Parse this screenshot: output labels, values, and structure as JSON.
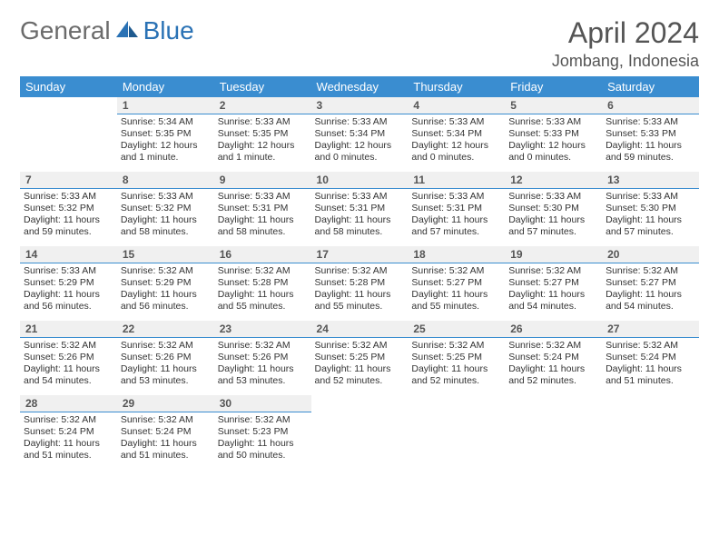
{
  "logo": {
    "part1": "General",
    "part2": "Blue"
  },
  "title": "April 2024",
  "location": "Jombang, Indonesia",
  "colors": {
    "header_bg": "#3a8dd0",
    "header_text": "#ffffff",
    "daynum_bg": "#f0f0f0",
    "day_border": "#3a8dd0",
    "logo_gray": "#6b6b6b",
    "logo_blue": "#2a72b5",
    "body_bg": "#ffffff",
    "text": "#333333"
  },
  "fonts": {
    "title_size": 32,
    "location_size": 18,
    "header_size": 13,
    "daynum_size": 12,
    "body_size": 10.5
  },
  "weekdays": [
    "Sunday",
    "Monday",
    "Tuesday",
    "Wednesday",
    "Thursday",
    "Friday",
    "Saturday"
  ],
  "first_weekday_index": 1,
  "days": [
    {
      "n": 1,
      "sunrise": "5:34 AM",
      "sunset": "5:35 PM",
      "daylight": "12 hours and 1 minute."
    },
    {
      "n": 2,
      "sunrise": "5:33 AM",
      "sunset": "5:35 PM",
      "daylight": "12 hours and 1 minute."
    },
    {
      "n": 3,
      "sunrise": "5:33 AM",
      "sunset": "5:34 PM",
      "daylight": "12 hours and 0 minutes."
    },
    {
      "n": 4,
      "sunrise": "5:33 AM",
      "sunset": "5:34 PM",
      "daylight": "12 hours and 0 minutes."
    },
    {
      "n": 5,
      "sunrise": "5:33 AM",
      "sunset": "5:33 PM",
      "daylight": "12 hours and 0 minutes."
    },
    {
      "n": 6,
      "sunrise": "5:33 AM",
      "sunset": "5:33 PM",
      "daylight": "11 hours and 59 minutes."
    },
    {
      "n": 7,
      "sunrise": "5:33 AM",
      "sunset": "5:32 PM",
      "daylight": "11 hours and 59 minutes."
    },
    {
      "n": 8,
      "sunrise": "5:33 AM",
      "sunset": "5:32 PM",
      "daylight": "11 hours and 58 minutes."
    },
    {
      "n": 9,
      "sunrise": "5:33 AM",
      "sunset": "5:31 PM",
      "daylight": "11 hours and 58 minutes."
    },
    {
      "n": 10,
      "sunrise": "5:33 AM",
      "sunset": "5:31 PM",
      "daylight": "11 hours and 58 minutes."
    },
    {
      "n": 11,
      "sunrise": "5:33 AM",
      "sunset": "5:31 PM",
      "daylight": "11 hours and 57 minutes."
    },
    {
      "n": 12,
      "sunrise": "5:33 AM",
      "sunset": "5:30 PM",
      "daylight": "11 hours and 57 minutes."
    },
    {
      "n": 13,
      "sunrise": "5:33 AM",
      "sunset": "5:30 PM",
      "daylight": "11 hours and 57 minutes."
    },
    {
      "n": 14,
      "sunrise": "5:33 AM",
      "sunset": "5:29 PM",
      "daylight": "11 hours and 56 minutes."
    },
    {
      "n": 15,
      "sunrise": "5:32 AM",
      "sunset": "5:29 PM",
      "daylight": "11 hours and 56 minutes."
    },
    {
      "n": 16,
      "sunrise": "5:32 AM",
      "sunset": "5:28 PM",
      "daylight": "11 hours and 55 minutes."
    },
    {
      "n": 17,
      "sunrise": "5:32 AM",
      "sunset": "5:28 PM",
      "daylight": "11 hours and 55 minutes."
    },
    {
      "n": 18,
      "sunrise": "5:32 AM",
      "sunset": "5:27 PM",
      "daylight": "11 hours and 55 minutes."
    },
    {
      "n": 19,
      "sunrise": "5:32 AM",
      "sunset": "5:27 PM",
      "daylight": "11 hours and 54 minutes."
    },
    {
      "n": 20,
      "sunrise": "5:32 AM",
      "sunset": "5:27 PM",
      "daylight": "11 hours and 54 minutes."
    },
    {
      "n": 21,
      "sunrise": "5:32 AM",
      "sunset": "5:26 PM",
      "daylight": "11 hours and 54 minutes."
    },
    {
      "n": 22,
      "sunrise": "5:32 AM",
      "sunset": "5:26 PM",
      "daylight": "11 hours and 53 minutes."
    },
    {
      "n": 23,
      "sunrise": "5:32 AM",
      "sunset": "5:26 PM",
      "daylight": "11 hours and 53 minutes."
    },
    {
      "n": 24,
      "sunrise": "5:32 AM",
      "sunset": "5:25 PM",
      "daylight": "11 hours and 52 minutes."
    },
    {
      "n": 25,
      "sunrise": "5:32 AM",
      "sunset": "5:25 PM",
      "daylight": "11 hours and 52 minutes."
    },
    {
      "n": 26,
      "sunrise": "5:32 AM",
      "sunset": "5:24 PM",
      "daylight": "11 hours and 52 minutes."
    },
    {
      "n": 27,
      "sunrise": "5:32 AM",
      "sunset": "5:24 PM",
      "daylight": "11 hours and 51 minutes."
    },
    {
      "n": 28,
      "sunrise": "5:32 AM",
      "sunset": "5:24 PM",
      "daylight": "11 hours and 51 minutes."
    },
    {
      "n": 29,
      "sunrise": "5:32 AM",
      "sunset": "5:24 PM",
      "daylight": "11 hours and 51 minutes."
    },
    {
      "n": 30,
      "sunrise": "5:32 AM",
      "sunset": "5:23 PM",
      "daylight": "11 hours and 50 minutes."
    }
  ],
  "labels": {
    "sunrise": "Sunrise:",
    "sunset": "Sunset:",
    "daylight": "Daylight:"
  }
}
